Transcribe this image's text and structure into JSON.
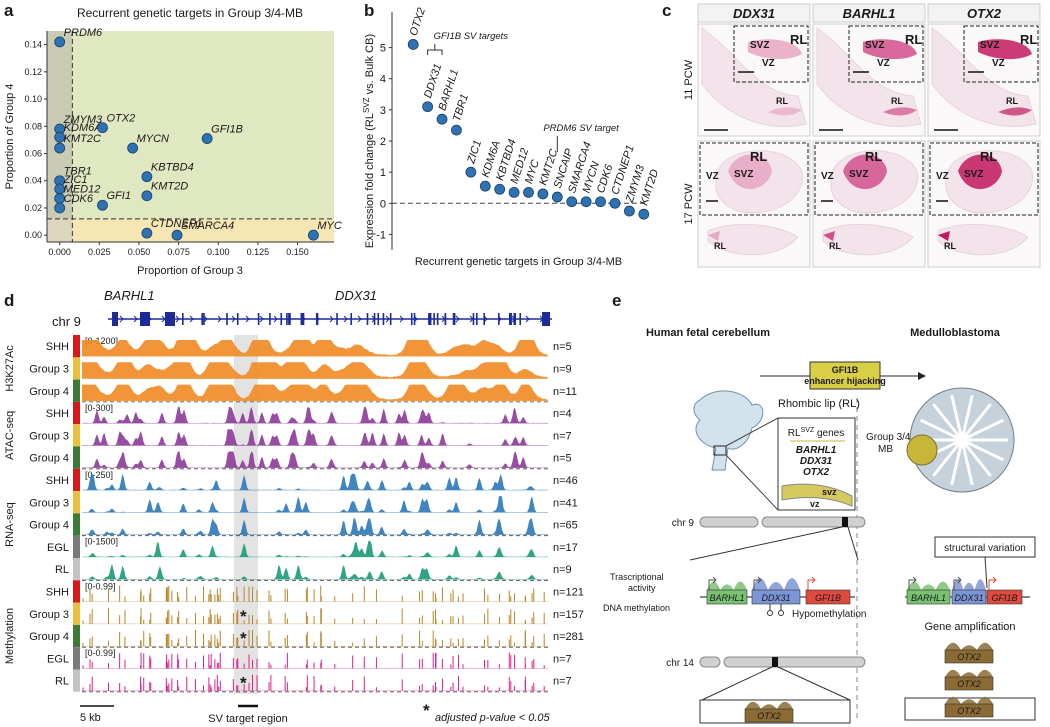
{
  "panel_letters": [
    "a",
    "b",
    "c",
    "d",
    "e"
  ],
  "chart_data": [
    {
      "type": "scatter",
      "title": "Recurrent genetic targets in Group 3/4-MB",
      "x_label": "Proportion of Group 3",
      "y_label": "Proportion of Group 4",
      "labels": [
        "PRDM6",
        "ZMYM3",
        "KDM6A",
        "KMT2C",
        "TBR1",
        "ZIC1",
        "MED12",
        "CDK6",
        "OTX2",
        "MYCN",
        "GFI1B",
        "KBTBD4",
        "KMT2D",
        "GFI1",
        "CTDNEP1",
        "SMARCA4",
        "MYC"
      ],
      "x": [
        0,
        0,
        0,
        0,
        0,
        0,
        0,
        0,
        0.027,
        0.046,
        0.093,
        0.055,
        0.055,
        0.027,
        0.055,
        0.074,
        0.16
      ],
      "values": [
        0.142,
        0.078,
        0.072,
        0.064,
        0.04,
        0.034,
        0.027,
        0.02,
        0.079,
        0.064,
        0.071,
        0.043,
        0.029,
        0.022,
        0.0015,
        0,
        0
      ],
      "color": "#2f72b3",
      "xlim": [
        -0.008,
        0.173
      ],
      "ylim": [
        -0.005,
        0.15
      ],
      "xticks": [
        {
          "value": 0,
          "label": "0.000"
        },
        0.025,
        {
          "value": 0.05,
          "label": "0.050"
        },
        0.075,
        {
          "value": 0.1,
          "label": "0.100"
        },
        0.125,
        {
          "value": 0.15,
          "label": "0.150"
        }
      ],
      "yticks": [
        {
          "value": 0,
          "label": "0.00"
        },
        0.02,
        0.04,
        0.06,
        0.08,
        {
          "value": 0.1,
          "label": "0.10"
        },
        0.12,
        0.14
      ],
      "thresholds": [
        0.008,
        0.012
      ],
      "region_colors": [
        "#dfe8c1",
        "#f6e6b3",
        "#c9ccb3",
        "#ddd6bf"
      ]
    },
    {
      "type": "dot",
      "x_label": "Recurrent genetic targets in Group 3/4-MB",
      "y_label": [
        "Expression fold change (RL",
        "SVZ",
        " vs. Bulk CB)"
      ],
      "categories": [
        "OTX2",
        "DDX31",
        "BARHL1",
        "TBR1",
        "ZIC1",
        "KDM6A",
        "KBTBD4",
        "MED12",
        "MYC",
        "KMT2C",
        "SNCAIP",
        "SMARCA4",
        "MYCN",
        "CDK6",
        "CTDNEP1",
        "ZMYM3",
        "KMT2D"
      ],
      "values": [
        5.1,
        3.1,
        2.7,
        2.35,
        1.0,
        0.55,
        0.45,
        0.35,
        0.35,
        0.3,
        0.2,
        0.05,
        0.05,
        0.05,
        0,
        -0.25,
        -0.35
      ],
      "color": "#2f72b3",
      "ylim": [
        -1.5,
        5.5
      ],
      "yticks": [
        -1,
        0,
        1,
        2,
        3,
        4,
        5
      ],
      "reference_line": 0,
      "annotations": [
        "GFI1B SV targets",
        "PRDM6 SV target"
      ]
    }
  ],
  "histology": {
    "genes": [
      "DDX31",
      "BARHL1",
      "OTX2"
    ],
    "stages": [
      "11 PCW",
      "17 PCW"
    ],
    "regions": {
      "rl": "RL",
      "svz": "SVZ",
      "vz": "VZ"
    },
    "colors": [
      "#e7a6c2",
      "#d2508c",
      "#c21a5e"
    ]
  },
  "tracks": {
    "genes": [
      "BARHL1",
      "DDX31"
    ],
    "chromosome": "chr 9",
    "scale": "5 kb",
    "region": "SV target region",
    "star": "*",
    "footnote": "adjusted p-value < 0.05",
    "assays": [
      {
        "label": "H3K27Ac",
        "blocks": [
          {
            "range": "[0-1200]",
            "color": "#f18a22",
            "rows": [
              {
                "label": "SHH",
                "n": "n=5",
                "sample_color": "#d7191c"
              },
              {
                "label": "Group 3",
                "n": "n=9",
                "sample_color": "#e8c040"
              },
              {
                "label": "Group 4",
                "n": "n=11",
                "sample_color": "#3d7a37"
              }
            ]
          }
        ]
      },
      {
        "label": "ATAC-seq",
        "blocks": [
          {
            "range": "[0-300]",
            "color": "#8c3a97",
            "rows": [
              {
                "label": "SHH",
                "n": "n=4",
                "sample_color": "#d7191c"
              },
              {
                "label": "Group 3",
                "n": "n=7",
                "sample_color": "#e8c040"
              },
              {
                "label": "Group 4",
                "n": "n=5",
                "sample_color": "#3d7a37"
              }
            ]
          }
        ]
      },
      {
        "label": "RNA-seq",
        "blocks": [
          {
            "range": "[0-250]",
            "color": "#2a78b8",
            "rows": [
              {
                "label": "SHH",
                "n": "n=46",
                "sample_color": "#d7191c"
              },
              {
                "label": "Group 3",
                "n": "n=41",
                "sample_color": "#e8c040"
              },
              {
                "label": "Group 4",
                "n": "n=65",
                "sample_color": "#3d7a37"
              }
            ]
          },
          {
            "range": "[0-1500]",
            "color": "#1b9a78",
            "rows": [
              {
                "label": "EGL",
                "n": "n=17",
                "sample_color": "#7a7a7a"
              },
              {
                "label": "RL",
                "n": "n=9",
                "sample_color": "#c4c4c4"
              }
            ]
          }
        ]
      },
      {
        "label": "Methylation",
        "blocks": [
          {
            "range": "[0-0.99]",
            "color": "#b8852a",
            "rows": [
              {
                "label": "SHH",
                "n": "n=121",
                "sample_color": "#d7191c"
              },
              {
                "label": "Group 3",
                "n": "n=157",
                "sample_color": "#e8c040",
                "star": true
              },
              {
                "label": "Group 4",
                "n": "n=281",
                "sample_color": "#3d7a37",
                "star": true
              }
            ]
          },
          {
            "range": "[0-0.99]",
            "color": "#e0208a",
            "rows": [
              {
                "label": "EGL",
                "n": "n=7",
                "sample_color": "#7a7a7a"
              },
              {
                "label": "RL",
                "n": "n=7",
                "sample_color": "#c4c4c4",
                "star": true
              }
            ]
          }
        ]
      }
    ]
  },
  "model": {
    "left_title": "Human fetal cerebellum",
    "right_title": "Medulloblastoma",
    "arrow_label": [
      "GFI1B",
      "enhancer hijacking"
    ],
    "rl_label": "Rhombic lip (RL)",
    "zoom": {
      "title": "RL",
      "title_sup": "SVZ",
      "title_rest": " genes",
      "genes": [
        "BARHL1",
        "DDX31",
        "OTX2"
      ],
      "svz": "svz",
      "vz": "vz"
    },
    "chr9": "chr 9",
    "chr14": "chr 14",
    "activity": [
      "Trascriptional",
      "activity"
    ],
    "methylation": "DNA methylation",
    "hypomethylation": "Hypomethylation",
    "locus_genes": [
      "BARHL1",
      "DDX31",
      "GFI1B"
    ],
    "otx2": "OTX2",
    "tumor": [
      "Group 3/4",
      "MB"
    ],
    "sv": "structural variation",
    "amplification": "Gene amplification"
  }
}
